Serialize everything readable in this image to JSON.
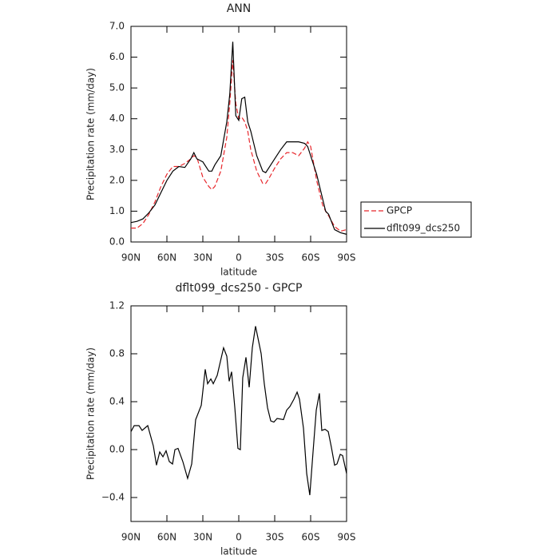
{
  "chart_data": [
    {
      "type": "line",
      "title": "ANN",
      "xlabel": "latitude",
      "ylabel": "Precipitation rate (mm/day)",
      "x": [
        90,
        85,
        80,
        75,
        70,
        65,
        60,
        55,
        50,
        45,
        40,
        37.5,
        35,
        30,
        25,
        22.5,
        20,
        15,
        10,
        7.5,
        5,
        2.5,
        0,
        -2.5,
        -5,
        -7.5,
        -10,
        -15,
        -20,
        -22.5,
        -25,
        -30,
        -35,
        -40,
        -45,
        -50,
        -55,
        -57.5,
        -60,
        -65,
        -70,
        -72.5,
        -75,
        -80,
        -85,
        -90
      ],
      "series": [
        {
          "name": "GPCP",
          "color": "#e8262b",
          "style": "dashed",
          "values": [
            0.45,
            0.45,
            0.6,
            0.9,
            1.3,
            1.8,
            2.2,
            2.45,
            2.45,
            2.55,
            2.7,
            2.8,
            2.75,
            2.1,
            1.8,
            1.7,
            1.8,
            2.3,
            3.4,
            4.5,
            5.9,
            4.5,
            4.0,
            4.05,
            3.9,
            3.6,
            3.0,
            2.3,
            1.9,
            1.9,
            2.05,
            2.4,
            2.7,
            2.9,
            2.9,
            2.8,
            3.05,
            3.25,
            3.1,
            2.0,
            1.2,
            1.0,
            0.85,
            0.5,
            0.35,
            0.4
          ]
        },
        {
          "name": "dflt099_dcs250",
          "color": "#000000",
          "style": "solid",
          "values": [
            0.63,
            0.67,
            0.75,
            0.95,
            1.2,
            1.6,
            2.0,
            2.3,
            2.45,
            2.42,
            2.7,
            2.9,
            2.7,
            2.6,
            2.3,
            2.3,
            2.5,
            2.8,
            3.9,
            4.8,
            6.5,
            4.1,
            3.95,
            4.65,
            4.7,
            3.9,
            3.6,
            2.8,
            2.3,
            2.25,
            2.4,
            2.7,
            3.0,
            3.25,
            3.25,
            3.25,
            3.2,
            3.1,
            2.8,
            2.2,
            1.4,
            1.0,
            0.9,
            0.4,
            0.3,
            0.25
          ]
        }
      ],
      "xlim": [
        90,
        -90
      ],
      "xticks": [
        {
          "value": 90,
          "label": "90N"
        },
        {
          "value": 60,
          "label": "60N"
        },
        {
          "value": 30,
          "label": "30N"
        },
        0,
        {
          "value": -30,
          "label": "30S"
        },
        {
          "value": -60,
          "label": "60S"
        },
        {
          "value": -90,
          "label": "90S"
        }
      ],
      "ylim": [
        0,
        7
      ],
      "yticks": [
        {
          "value": 0,
          "label": "0.0"
        },
        {
          "value": 1,
          "label": "1.0"
        },
        {
          "value": 2,
          "label": "2.0"
        },
        {
          "value": 3,
          "label": "3.0"
        },
        {
          "value": 4,
          "label": "4.0"
        },
        {
          "value": 5,
          "label": "5.0"
        },
        {
          "value": 6,
          "label": "6.0"
        },
        {
          "value": 7,
          "label": "7.0"
        }
      ],
      "legend": "outside-right"
    },
    {
      "type": "line",
      "title": "dflt099_dcs250 - GPCP",
      "xlabel": "latitude",
      "ylabel": "Precipitation rate (mm/day)",
      "x": [
        90,
        87.3,
        83.3,
        80.7,
        76,
        71.3,
        68.7,
        66,
        63.3,
        60.7,
        58,
        55.3,
        53.3,
        50.7,
        46.7,
        42.7,
        39.3,
        36,
        31.3,
        28,
        26,
        23.3,
        21.3,
        18,
        12.7,
        10,
        8,
        6,
        3.3,
        0.7,
        -1.3,
        -3.3,
        -6,
        -8.7,
        -11.3,
        -14,
        -18.7,
        -21.3,
        -24,
        -26.7,
        -29.3,
        -32,
        -37.3,
        -40,
        -42.7,
        -46,
        -48.7,
        -50.7,
        -54,
        -56.7,
        -59.3,
        -62,
        -64.7,
        -67.3,
        -69.3,
        -72,
        -74.7,
        -77.3,
        -80,
        -82,
        -84.7,
        -86.7,
        -90
      ],
      "series": [
        {
          "name": "dflt099_dcs250 - GPCP",
          "color": "#000000",
          "style": "solid",
          "values": [
            0.15,
            0.2,
            0.2,
            0.16,
            0.2,
            0.03,
            -0.13,
            -0.02,
            -0.06,
            -0.01,
            -0.1,
            -0.12,
            0,
            0.01,
            -0.1,
            -0.24,
            -0.12,
            0.25,
            0.37,
            0.67,
            0.55,
            0.59,
            0.55,
            0.62,
            0.85,
            0.78,
            0.57,
            0.65,
            0.35,
            0.01,
            0,
            0.6,
            0.77,
            0.52,
            0.85,
            1.03,
            0.8,
            0.55,
            0.35,
            0.24,
            0.23,
            0.26,
            0.25,
            0.33,
            0.36,
            0.42,
            0.48,
            0.42,
            0.18,
            -0.2,
            -0.38,
            -0.02,
            0.33,
            0.47,
            0.16,
            0.17,
            0.15,
            0.02,
            -0.13,
            -0.12,
            -0.04,
            -0.05,
            -0.2
          ]
        }
      ],
      "xlim": [
        90,
        -90
      ],
      "xticks": [
        {
          "value": 90,
          "label": "90N"
        },
        {
          "value": 60,
          "label": "60N"
        },
        {
          "value": 30,
          "label": "30N"
        },
        0,
        {
          "value": -30,
          "label": "30S"
        },
        {
          "value": -60,
          "label": "60S"
        },
        {
          "value": -90,
          "label": "90S"
        }
      ],
      "ylim": [
        -0.6,
        1.2
      ],
      "yticks": [
        1.2,
        0.8,
        0.4,
        {
          "value": 0,
          "label": "0.0"
        },
        {
          "value": -0.4,
          "label": "−0.4"
        }
      ]
    }
  ]
}
